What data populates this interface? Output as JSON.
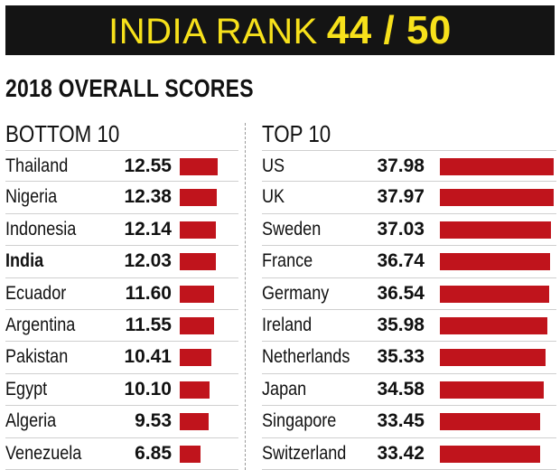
{
  "banner": {
    "label": "INDIA RANK",
    "rank": "44 / 50"
  },
  "subtitle": "2018 OVERALL SCORES",
  "colors": {
    "bar": "#c0141c",
    "banner_bg": "#141414",
    "banner_text": "#f7e11b"
  },
  "chart_data": [
    {
      "type": "bar",
      "orientation": "horizontal",
      "title": "BOTTOM 10",
      "categories": [
        "Thailand",
        "Nigeria",
        "Indonesia",
        "India",
        "Ecuador",
        "Argentina",
        "Pakistan",
        "Egypt",
        "Algeria",
        "Venezuela"
      ],
      "values": [
        12.55,
        12.38,
        12.14,
        12.03,
        11.6,
        11.55,
        10.41,
        10.1,
        9.53,
        6.85
      ],
      "labels": [
        "12.55",
        "12.38",
        "12.14",
        "12.03",
        "11.60",
        "11.55",
        "10.41",
        "10.10",
        "9.53",
        "6.85"
      ],
      "highlight": "India",
      "xlim": [
        0,
        39
      ]
    },
    {
      "type": "bar",
      "orientation": "horizontal",
      "title": "TOP 10",
      "categories": [
        "US",
        "UK",
        "Sweden",
        "France",
        "Germany",
        "Ireland",
        "Netherlands",
        "Japan",
        "Singapore",
        "Switzerland"
      ],
      "values": [
        37.98,
        37.97,
        37.03,
        36.74,
        36.54,
        35.98,
        35.33,
        34.58,
        33.45,
        33.42
      ],
      "labels": [
        "37.98",
        "37.97",
        "37.03",
        "36.74",
        "36.54",
        "35.98",
        "35.33",
        "34.58",
        "33.45",
        "33.42"
      ],
      "xlim": [
        0,
        39
      ]
    }
  ]
}
